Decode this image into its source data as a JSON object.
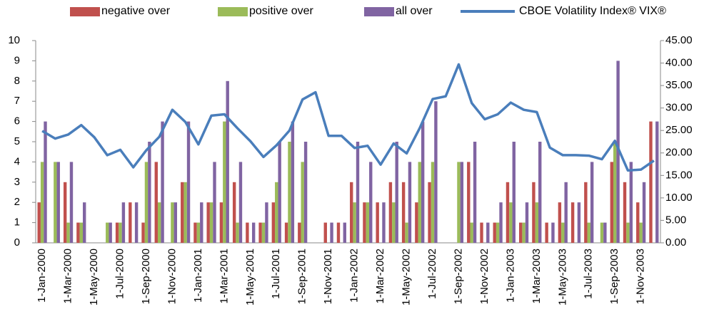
{
  "chart_data": {
    "type": "bar",
    "categories": [
      "1-Jan-2000",
      null,
      "1-Mar-2000",
      null,
      "1-May-2000",
      null,
      "1-Jul-2000",
      null,
      "1-Sep-2000",
      null,
      "1-Nov-2000",
      null,
      "1-Jan-2001",
      null,
      "1-Mar-2001",
      null,
      "1-May-2001",
      null,
      "1-Jul-2001",
      null,
      "1-Sep-2001",
      null,
      "1-Nov-2001",
      null,
      "1-Jan-2002",
      null,
      "1-Mar-2002",
      null,
      "1-May-2002",
      null,
      "1-Jul-2002",
      null,
      "1-Sep-2002",
      null,
      "1-Nov-2002",
      null,
      "1-Jan-2003",
      null,
      "1-Mar-2003",
      null,
      "1-May-2003",
      null,
      "1-Jul-2003",
      null,
      "1-Sep-2003",
      null,
      "1-Nov-2003",
      null
    ],
    "series": [
      {
        "name": "negative over",
        "color": "#c0504d",
        "values": [
          2,
          0,
          3,
          1,
          0,
          0,
          1,
          2,
          1,
          4,
          0,
          3,
          1,
          2,
          2,
          3,
          1,
          1,
          2,
          1,
          1,
          0,
          1,
          1,
          3,
          2,
          2,
          3,
          3,
          2,
          3,
          0,
          0,
          4,
          1,
          1,
          3,
          1,
          3,
          1,
          2,
          2,
          3,
          0,
          4,
          3,
          2,
          6
        ]
      },
      {
        "name": "positive over",
        "color": "#9bbb59",
        "values": [
          4,
          4,
          1,
          1,
          0,
          1,
          1,
          0,
          4,
          2,
          2,
          3,
          1,
          2,
          6,
          1,
          0,
          1,
          3,
          5,
          4,
          0,
          0,
          0,
          2,
          2,
          0,
          2,
          1,
          4,
          4,
          0,
          4,
          1,
          0,
          1,
          2,
          1,
          2,
          0,
          1,
          0,
          1,
          1,
          5,
          1,
          1,
          0
        ]
      },
      {
        "name": "all over",
        "color": "#8064a2",
        "values": [
          6,
          4,
          4,
          2,
          0,
          1,
          2,
          2,
          5,
          6,
          2,
          6,
          2,
          4,
          8,
          4,
          1,
          2,
          5,
          6,
          5,
          0,
          1,
          1,
          5,
          4,
          2,
          5,
          4,
          6,
          7,
          0,
          4,
          5,
          1,
          2,
          5,
          2,
          5,
          1,
          3,
          2,
          4,
          1,
          9,
          4,
          3,
          6
        ]
      },
      {
        "name": "CBOE Volatility Index® VIX®",
        "color": "#4a7ebb",
        "axis": "y2",
        "values": [
          24.9,
          23.2,
          24.1,
          26.2,
          23.5,
          19.5,
          20.7,
          16.8,
          20.6,
          23.6,
          29.6,
          26.9,
          21.9,
          28.3,
          28.6,
          25.5,
          22.6,
          19.1,
          21.7,
          25.0,
          31.9,
          33.5,
          23.8,
          23.8,
          21.1,
          21.6,
          17.4,
          22.1,
          19.9,
          25.5,
          32.0,
          32.6,
          39.7,
          31.1,
          27.5,
          28.6,
          31.2,
          29.6,
          29.1,
          21.2,
          19.5,
          19.5,
          19.4,
          18.6,
          22.7,
          16.1,
          16.3,
          18.3
        ]
      }
    ],
    "ylim": [
      0,
      10
    ],
    "yticks": [
      0,
      1,
      2,
      3,
      4,
      5,
      6,
      7,
      8,
      9,
      10
    ],
    "y2lim": [
      0,
      45
    ],
    "y2ticks": [
      {
        "value": 0,
        "label": "0.00"
      },
      {
        "value": 5,
        "label": "5.00"
      },
      {
        "value": 10,
        "label": "10.00"
      },
      {
        "value": 15,
        "label": "15.00"
      },
      {
        "value": 20,
        "label": "20.00"
      },
      {
        "value": 25,
        "label": "25.00"
      },
      {
        "value": 30,
        "label": "30.00"
      },
      {
        "value": 35,
        "label": "35.00"
      },
      {
        "value": 40,
        "label": "40.00"
      },
      {
        "value": 45,
        "label": "45.00"
      }
    ]
  }
}
